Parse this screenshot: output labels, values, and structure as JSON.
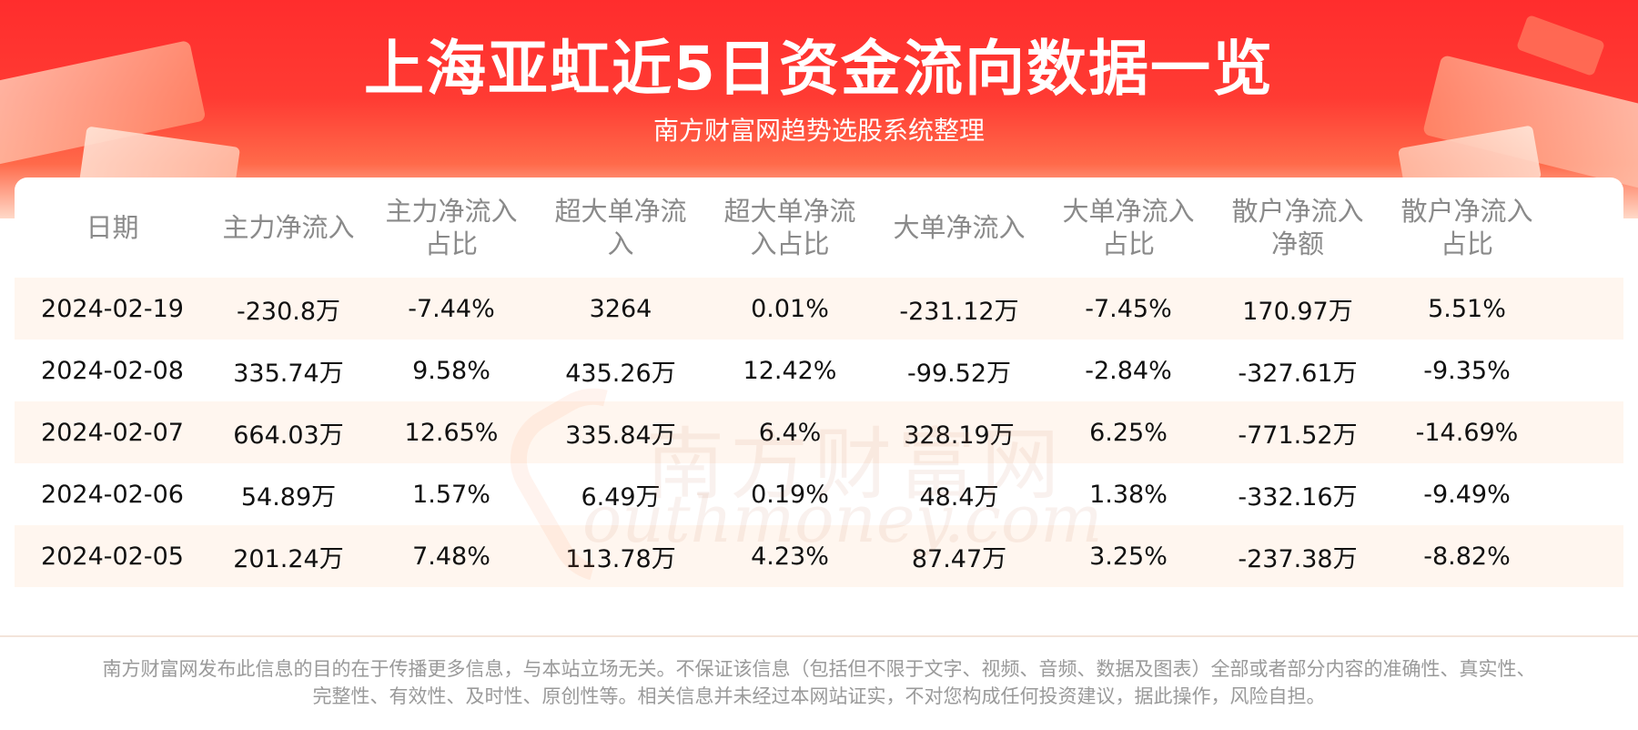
{
  "header": {
    "title": "上海亚虹近5日资金流向数据一览",
    "subtitle": "南方财富网趋势选股系统整理"
  },
  "table": {
    "columns": [
      [
        "日期"
      ],
      [
        "主力净流入"
      ],
      [
        "主力净流入",
        "占比"
      ],
      [
        "超大单净流",
        "入"
      ],
      [
        "超大单净流",
        "入占比"
      ],
      [
        "大单净流入"
      ],
      [
        "大单净流入",
        "占比"
      ],
      [
        "散户净流入",
        "净额"
      ],
      [
        "散户净流入",
        "占比"
      ]
    ],
    "rows": [
      [
        "2024-02-19",
        "-230.8万",
        "-7.44%",
        "3264",
        "0.01%",
        "-231.12万",
        "-7.45%",
        "170.97万",
        "5.51%"
      ],
      [
        "2024-02-08",
        "335.74万",
        "9.58%",
        "435.26万",
        "12.42%",
        "-99.52万",
        "-2.84%",
        "-327.61万",
        "-9.35%"
      ],
      [
        "2024-02-07",
        "664.03万",
        "12.65%",
        "335.84万",
        "6.4%",
        "328.19万",
        "6.25%",
        "-771.52万",
        "-14.69%"
      ],
      [
        "2024-02-06",
        "54.89万",
        "1.57%",
        "6.49万",
        "0.19%",
        "48.4万",
        "1.38%",
        "-332.16万",
        "-9.49%"
      ],
      [
        "2024-02-05",
        "201.24万",
        "7.48%",
        "113.78万",
        "4.23%",
        "87.47万",
        "3.25%",
        "-237.38万",
        "-8.82%"
      ]
    ]
  },
  "watermark": {
    "cn": "南方财富网",
    "en": "outhmoney.com"
  },
  "footer": {
    "disclaimer_line1": "南方财富网发布此信息的目的在于传播更多信息，与本站立场无关。不保证该信息（包括但不限于文字、视频、音频、数据及图表）全部或者部分内容的准确性、真实性、",
    "disclaimer_line2": "完整性、有效性、及时性、原创性等。相关信息并未经过本网站证实，不对您构成任何投资建议，据此操作，风险自担。"
  },
  "colors": {
    "banner_red": "#ff2d2d",
    "stripe": "#fff6ef",
    "header_text": "#8a8a8a"
  }
}
